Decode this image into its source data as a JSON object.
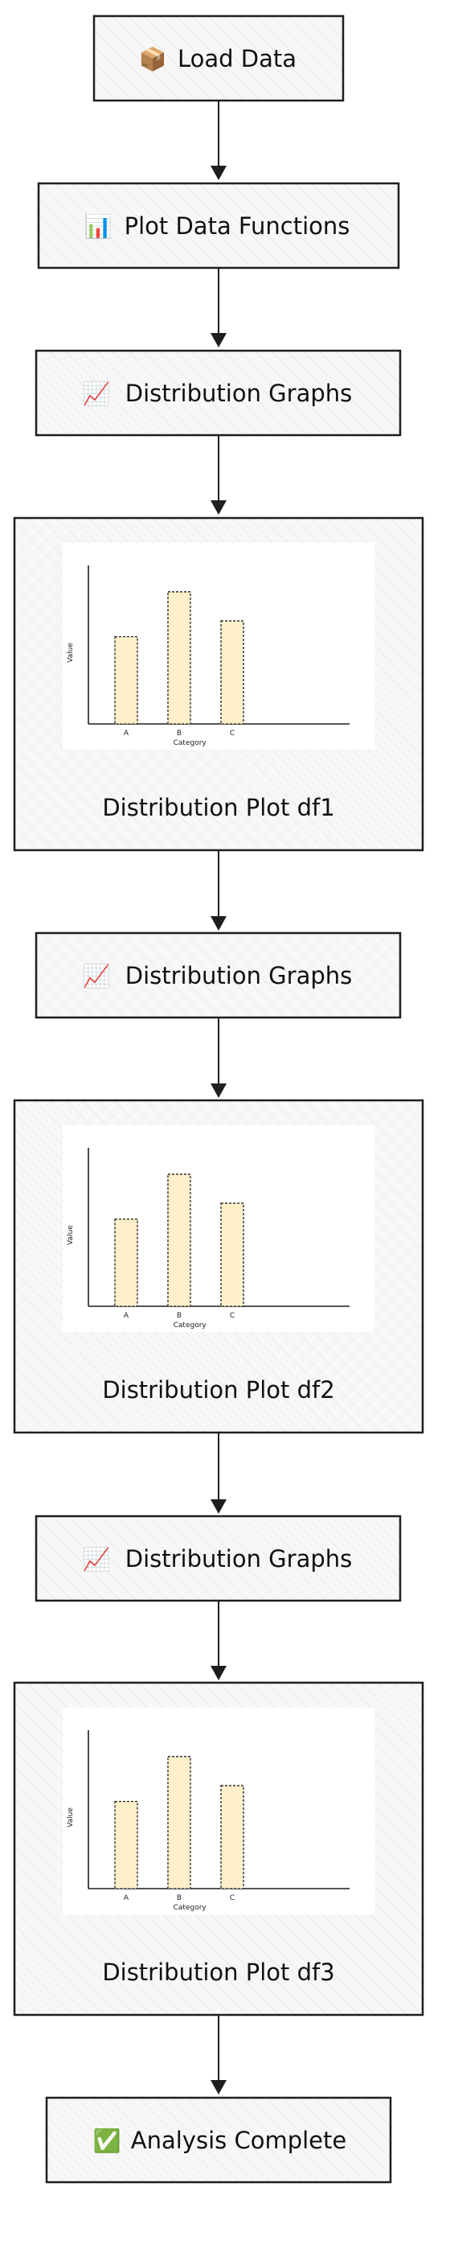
{
  "nodes": {
    "load_data": {
      "icon": "📦",
      "label": "Load Data"
    },
    "plot_functions": {
      "icon": "📊",
      "label": "Plot Data Functions"
    },
    "dist_graphs_1": {
      "icon": "📈",
      "label": "Distribution Graphs"
    },
    "plot_df1": {
      "label": "Distribution Plot df1"
    },
    "dist_graphs_2": {
      "icon": "📈",
      "label": "Distribution Graphs"
    },
    "plot_df2": {
      "label": "Distribution Plot df2"
    },
    "dist_graphs_3": {
      "icon": "📈",
      "label": "Distribution Graphs"
    },
    "plot_df3": {
      "label": "Distribution Plot df3"
    },
    "analysis_complete": {
      "icon": "✅",
      "label": "Analysis Complete"
    }
  },
  "chart_data": [
    {
      "type": "bar",
      "categories": [
        "A",
        "B",
        "C"
      ],
      "values": [
        3.3,
        5.0,
        3.9
      ],
      "xlabel": "Category",
      "ylabel": "Value",
      "ylim": [
        0,
        6
      ]
    },
    {
      "type": "bar",
      "categories": [
        "A",
        "B",
        "C"
      ],
      "values": [
        3.3,
        5.0,
        3.9
      ],
      "xlabel": "Category",
      "ylabel": "Value",
      "ylim": [
        0,
        6
      ]
    },
    {
      "type": "bar",
      "categories": [
        "A",
        "B",
        "C"
      ],
      "values": [
        3.3,
        5.0,
        3.9
      ],
      "xlabel": "Category",
      "ylabel": "Value",
      "ylim": [
        0,
        6
      ]
    }
  ],
  "colors": {
    "box_fill": "#f7f7f7",
    "stroke": "#1e1e1e",
    "bar_fill": "#fdf0c8",
    "hatch": "#e6e6e6"
  }
}
